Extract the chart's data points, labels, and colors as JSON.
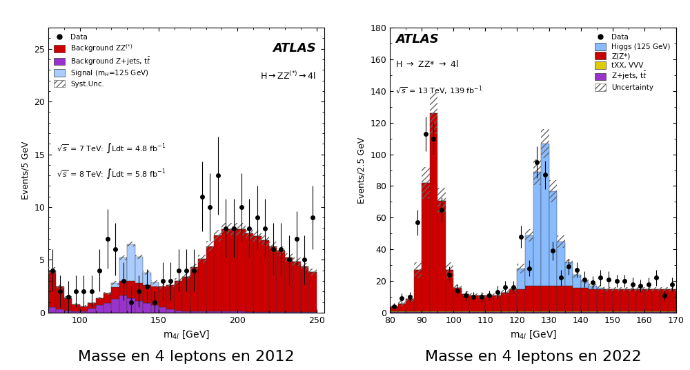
{
  "plot1": {
    "xlabel": "m$_{4l}$ [GeV]",
    "ylabel": "Events/5 GeV",
    "xlim": [
      80,
      255
    ],
    "ylim": [
      0,
      27
    ],
    "yticks": [
      0,
      5,
      10,
      15,
      20,
      25
    ],
    "xticks": [
      100,
      150,
      200,
      250
    ],
    "caption": "Masse en 4 leptons en 2012",
    "bin_edges": [
      80,
      85,
      90,
      95,
      100,
      105,
      110,
      115,
      120,
      125,
      130,
      135,
      140,
      145,
      150,
      155,
      160,
      165,
      170,
      175,
      180,
      185,
      190,
      195,
      200,
      205,
      210,
      215,
      220,
      225,
      230,
      235,
      240,
      245,
      250
    ],
    "zz_bg": [
      3.5,
      2.2,
      1.2,
      0.7,
      0.5,
      0.5,
      0.7,
      0.9,
      1.1,
      1.4,
      1.6,
      1.7,
      1.7,
      1.8,
      2.0,
      2.3,
      2.8,
      3.3,
      4.2,
      5.0,
      6.2,
      7.2,
      7.8,
      7.8,
      7.8,
      7.5,
      7.2,
      6.8,
      6.2,
      5.8,
      5.2,
      4.8,
      4.3,
      3.8
    ],
    "zjets_bg": [
      0.5,
      0.3,
      0.2,
      0.1,
      0.1,
      0.4,
      0.7,
      0.9,
      1.3,
      1.6,
      1.4,
      1.1,
      0.9,
      0.7,
      0.5,
      0.3,
      0.2,
      0.1,
      0.1,
      0.1,
      0.1,
      0.1,
      0.1,
      0.1,
      0.1,
      0.05,
      0.05,
      0.05,
      0.05,
      0.05,
      0.05,
      0.05,
      0.05,
      0.05
    ],
    "signal": [
      0,
      0,
      0,
      0,
      0,
      0,
      0,
      0,
      0.4,
      2.2,
      3.5,
      2.5,
      1.2,
      0.4,
      0,
      0,
      0,
      0,
      0,
      0,
      0,
      0,
      0,
      0,
      0,
      0,
      0,
      0,
      0,
      0,
      0,
      0,
      0,
      0
    ],
    "hatch_err": [
      0.3,
      0.2,
      0.15,
      0.1,
      0.1,
      0.1,
      0.1,
      0.15,
      0.2,
      0.25,
      0.25,
      0.2,
      0.2,
      0.2,
      0.2,
      0.2,
      0.25,
      0.3,
      0.35,
      0.4,
      0.5,
      0.55,
      0.6,
      0.6,
      0.6,
      0.55,
      0.55,
      0.5,
      0.5,
      0.45,
      0.4,
      0.4,
      0.35,
      0.3
    ],
    "data_x": [
      82.5,
      87.5,
      92.5,
      97.5,
      102.5,
      107.5,
      112.5,
      117.5,
      122.5,
      127.5,
      132.5,
      137.5,
      142.5,
      147.5,
      152.5,
      157.5,
      162.5,
      167.5,
      172.5,
      177.5,
      182.5,
      187.5,
      192.5,
      197.5,
      202.5,
      207.5,
      212.5,
      217.5,
      222.5,
      227.5,
      232.5,
      237.5,
      242.5,
      247.5
    ],
    "data_y": [
      4.0,
      2.0,
      1.5,
      2.0,
      2.0,
      2.0,
      4.0,
      7.0,
      6.0,
      3.0,
      1.0,
      2.0,
      2.5,
      1.0,
      3.0,
      3.0,
      4.0,
      4.0,
      4.0,
      11.0,
      10.0,
      13.0,
      8.0,
      8.0,
      10.0,
      8.0,
      9.0,
      8.0,
      6.0,
      6.0,
      5.0,
      7.0,
      5.0,
      9.0
    ],
    "data_yerr": [
      2.0,
      1.5,
      1.5,
      1.5,
      1.5,
      1.5,
      2.0,
      2.8,
      2.5,
      1.8,
      1.5,
      1.5,
      1.6,
      1.0,
      1.8,
      1.8,
      2.0,
      2.0,
      2.0,
      3.3,
      3.2,
      3.7,
      2.8,
      2.8,
      3.2,
      2.8,
      3.0,
      2.8,
      2.5,
      2.5,
      2.3,
      2.6,
      2.3,
      3.0
    ],
    "color_zz": "#cc0000",
    "color_zjets": "#9933cc",
    "color_signal": "#aaccff",
    "legend_items": [
      "Data",
      "Background ZZ$^{(*)}$",
      "Background Z+jets, t$\\bar{t}$",
      "Signal (m$_H$=125 GeV)",
      "Syst.Unc."
    ]
  },
  "plot2": {
    "xlabel": "m$_{4l}$ [GeV]",
    "ylabel": "Events/2.5 GeV",
    "xlim": [
      80,
      170
    ],
    "ylim": [
      0,
      180
    ],
    "yticks": [
      0,
      20,
      40,
      60,
      80,
      100,
      120,
      140,
      160,
      180
    ],
    "xticks": [
      80,
      90,
      100,
      110,
      120,
      130,
      140,
      150,
      160,
      170
    ],
    "caption": "Masse en 4 leptons en 2022",
    "bin_edges": [
      80,
      82.5,
      85,
      87.5,
      90,
      92.5,
      95,
      97.5,
      100,
      102.5,
      105,
      107.5,
      110,
      112.5,
      115,
      117.5,
      120,
      122.5,
      125,
      127.5,
      130,
      132.5,
      135,
      137.5,
      140,
      142.5,
      145,
      147.5,
      150,
      152.5,
      155,
      157.5,
      160,
      162.5,
      165,
      167.5,
      170
    ],
    "zz_bg": [
      3,
      5,
      8,
      26,
      81,
      125,
      70,
      26,
      15,
      11,
      10,
      10,
      10,
      10,
      12,
      14,
      14,
      16,
      16,
      16,
      16,
      16,
      16,
      15,
      15,
      14,
      14,
      14,
      14,
      14,
      14,
      14,
      14,
      14,
      14,
      14
    ],
    "signal": [
      0,
      0,
      0,
      0,
      0,
      0,
      0,
      0,
      0,
      0,
      0,
      0,
      0,
      0,
      0,
      0,
      13,
      32,
      72,
      90,
      60,
      28,
      15,
      8,
      4,
      2,
      1,
      0,
      0,
      0,
      0,
      0,
      0,
      0,
      0,
      0
    ],
    "zjets_bg": [
      0.5,
      0.5,
      0.5,
      0.5,
      0.5,
      0.5,
      0.5,
      0.5,
      0.5,
      0.5,
      0.5,
      0.5,
      0.5,
      0.5,
      0.5,
      0.5,
      0.5,
      0.5,
      0.5,
      0.5,
      0.5,
      0.5,
      0.5,
      0.5,
      0.5,
      0.5,
      0.5,
      0.5,
      0.5,
      0.5,
      0.5,
      0.5,
      0.5,
      0.5,
      0.5,
      0.5
    ],
    "txx_bg": [
      0.3,
      0.3,
      0.3,
      0.3,
      0.3,
      0.3,
      0.3,
      0.3,
      0.3,
      0.3,
      0.3,
      0.3,
      0.3,
      0.3,
      0.3,
      0.3,
      0.3,
      0.3,
      0.3,
      0.3,
      0.3,
      0.3,
      0.3,
      0.3,
      0.3,
      0.3,
      0.3,
      0.3,
      0.3,
      0.3,
      0.3,
      0.3,
      0.3,
      0.3,
      0.3,
      0.3
    ],
    "hatch_err": [
      1,
      2,
      2,
      5,
      10,
      13,
      8,
      5,
      2,
      1.5,
      1.5,
      1.5,
      1.5,
      1.5,
      1.5,
      1.5,
      3,
      4,
      8,
      9,
      7,
      4,
      2,
      1.5,
      1.5,
      1.5,
      1.5,
      1.5,
      1.5,
      1.5,
      1.5,
      1.5,
      1.5,
      1.5,
      1.5,
      1.5
    ],
    "data_x": [
      81.25,
      83.75,
      86.25,
      88.75,
      91.25,
      93.75,
      96.25,
      98.75,
      101.25,
      103.75,
      106.25,
      108.75,
      111.25,
      113.75,
      116.25,
      118.75,
      121.25,
      123.75,
      126.25,
      128.75,
      131.25,
      133.75,
      136.25,
      138.75,
      141.25,
      143.75,
      146.25,
      148.75,
      151.25,
      153.75,
      156.25,
      158.75,
      161.25,
      163.75,
      166.25,
      168.75
    ],
    "data_y": [
      4,
      9,
      10,
      57,
      113,
      110,
      65,
      24,
      14,
      11,
      10,
      10,
      11,
      13,
      16,
      16,
      48,
      28,
      95,
      87,
      39,
      22,
      29,
      27,
      21,
      19,
      22,
      21,
      20,
      20,
      18,
      17,
      18,
      22,
      11,
      18
    ],
    "data_yerr": [
      2,
      3,
      3,
      8,
      11,
      10,
      8,
      5,
      4,
      3,
      3,
      3,
      3,
      4,
      4,
      4,
      7,
      5,
      10,
      9,
      6,
      5,
      5,
      5,
      5,
      4,
      5,
      5,
      4,
      4,
      4,
      4,
      4,
      5,
      3,
      4
    ],
    "color_zz": "#cc0000",
    "color_signal": "#88bbff",
    "color_zjets": "#9933cc",
    "color_txx": "#ddcc00",
    "legend_items": [
      "Data",
      "Higgs (125 GeV)",
      "Z(Z*)",
      "tXX, VVV",
      "Z+jets, t$\\bar{t}$",
      "Uncertainty"
    ]
  },
  "background_color": "#ffffff",
  "caption_fontsize": 16
}
